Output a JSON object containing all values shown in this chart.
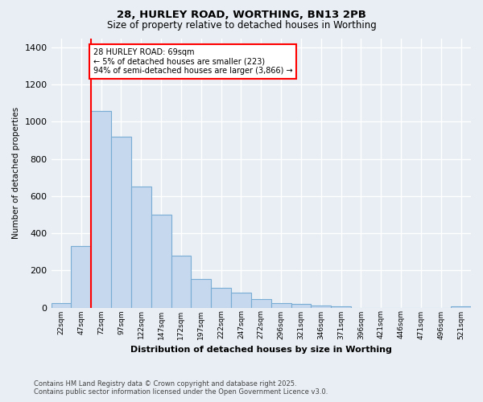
{
  "title_line1": "28, HURLEY ROAD, WORTHING, BN13 2PB",
  "title_line2": "Size of property relative to detached houses in Worthing",
  "xlabel": "Distribution of detached houses by size in Worthing",
  "ylabel": "Number of detached properties",
  "footer_line1": "Contains HM Land Registry data © Crown copyright and database right 2025.",
  "footer_line2": "Contains public sector information licensed under the Open Government Licence v3.0.",
  "categories": [
    "22sqm",
    "47sqm",
    "72sqm",
    "97sqm",
    "122sqm",
    "147sqm",
    "172sqm",
    "197sqm",
    "222sqm",
    "247sqm",
    "272sqm",
    "296sqm",
    "321sqm",
    "346sqm",
    "371sqm",
    "396sqm",
    "421sqm",
    "446sqm",
    "471sqm",
    "496sqm",
    "521sqm"
  ],
  "values": [
    22,
    330,
    1060,
    920,
    650,
    500,
    280,
    155,
    105,
    80,
    45,
    25,
    18,
    12,
    8,
    0,
    0,
    0,
    0,
    0,
    5
  ],
  "bar_color": "#c5d8ee",
  "bar_edge_color": "#7aadd4",
  "background_color": "#e8eef4",
  "grid_color": "#ffffff",
  "red_line_index": 2,
  "annotation_text": "28 HURLEY ROAD: 69sqm\n← 5% of detached houses are smaller (223)\n94% of semi-detached houses are larger (3,866) →",
  "ylim": [
    0,
    1450
  ],
  "yticks": [
    0,
    200,
    400,
    600,
    800,
    1000,
    1200,
    1400
  ]
}
